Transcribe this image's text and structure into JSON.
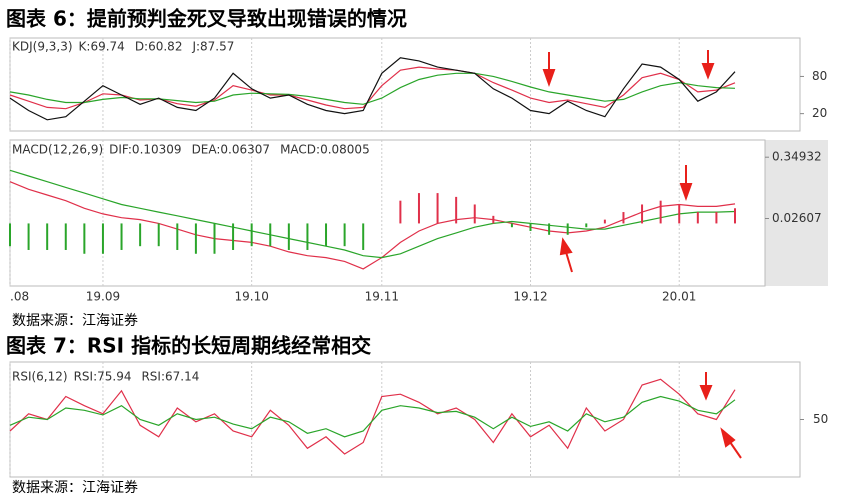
{
  "figure6_title": "图表 6：提前预判金死叉导致出现错误的情况",
  "figure6_source": "数据来源：江海证券",
  "figure7_title": "图表 7：RSI 指标的长短周期线经常相交",
  "figure7_source": "数据来源：江海证券",
  "chart_data": [
    {
      "type": "line",
      "indicator": "KDJ(9,3,3)",
      "ylim": [
        -8,
        142
      ],
      "yticks": [
        80,
        20
      ],
      "series": [
        {
          "name": "K:69.74",
          "color": "#e0304a",
          "values": [
            50,
            40,
            30,
            28,
            38,
            52,
            50,
            42,
            44,
            36,
            32,
            42,
            65,
            58,
            50,
            50,
            42,
            34,
            28,
            30,
            65,
            90,
            95,
            92,
            90,
            85,
            70,
            58,
            45,
            38,
            42,
            36,
            30,
            50,
            78,
            85,
            75,
            55,
            58,
            69.74
          ]
        },
        {
          "name": "D:60.82",
          "color": "#2aa52a",
          "values": [
            55,
            50,
            43,
            38,
            38,
            43,
            46,
            44,
            44,
            41,
            38,
            40,
            50,
            53,
            52,
            51,
            48,
            43,
            38,
            35,
            45,
            62,
            75,
            82,
            85,
            85,
            80,
            72,
            63,
            55,
            50,
            45,
            40,
            43,
            55,
            65,
            70,
            65,
            62,
            60.82
          ]
        },
        {
          "name": "J:87.57",
          "color": "#111111",
          "values": [
            45,
            25,
            10,
            15,
            40,
            65,
            50,
            35,
            45,
            30,
            25,
            45,
            85,
            60,
            45,
            50,
            35,
            25,
            20,
            25,
            85,
            110,
            105,
            95,
            90,
            85,
            60,
            45,
            25,
            20,
            40,
            25,
            15,
            60,
            100,
            95,
            75,
            40,
            55,
            87.57
          ]
        }
      ]
    },
    {
      "type": "macd",
      "indicator": "MACD(12,26,9)",
      "ylim": [
        -0.33,
        0.44
      ],
      "yticks": [
        0.34932,
        0.02607
      ],
      "categories": [
        ".08",
        null,
        null,
        null,
        null,
        "19.09",
        null,
        null,
        null,
        null,
        null,
        null,
        null,
        "19.10",
        null,
        null,
        null,
        null,
        null,
        null,
        "19.11",
        null,
        null,
        null,
        null,
        null,
        null,
        null,
        "19.12",
        null,
        null,
        null,
        null,
        null,
        null,
        null,
        "20.01",
        null,
        null,
        null
      ],
      "series": [
        {
          "name": "DIF:0.10309",
          "color": "#e0304a",
          "values": [
            0.22,
            0.18,
            0.15,
            0.12,
            0.08,
            0.05,
            0.03,
            0.02,
            0.0,
            -0.03,
            -0.06,
            -0.08,
            -0.09,
            -0.1,
            -0.12,
            -0.15,
            -0.17,
            -0.18,
            -0.2,
            -0.24,
            -0.18,
            -0.1,
            -0.04,
            0.0,
            0.02,
            0.03,
            0.02,
            0.0,
            -0.02,
            -0.04,
            -0.05,
            -0.04,
            -0.02,
            0.02,
            0.06,
            0.09,
            0.1,
            0.09,
            0.09,
            0.10309
          ]
        },
        {
          "name": "DEA:0.06307",
          "color": "#2aa52a",
          "values": [
            0.28,
            0.25,
            0.22,
            0.19,
            0.16,
            0.13,
            0.1,
            0.08,
            0.06,
            0.04,
            0.02,
            0.0,
            -0.02,
            -0.04,
            -0.06,
            -0.08,
            -0.1,
            -0.12,
            -0.14,
            -0.17,
            -0.18,
            -0.16,
            -0.12,
            -0.08,
            -0.05,
            -0.02,
            0.0,
            0.01,
            0.0,
            -0.01,
            -0.02,
            -0.03,
            -0.03,
            -0.01,
            0.01,
            0.03,
            0.05,
            0.06,
            0.06,
            0.06307
          ]
        },
        {
          "name": "MACD:0.08005",
          "color": "#111111",
          "kind": "bar",
          "up_color": "#e0304a",
          "down_color": "#2aa52a",
          "values": [
            -0.12,
            -0.14,
            -0.14,
            -0.14,
            -0.16,
            -0.16,
            -0.14,
            -0.12,
            -0.12,
            -0.14,
            -0.16,
            -0.16,
            -0.14,
            -0.12,
            -0.12,
            -0.14,
            -0.14,
            -0.12,
            -0.12,
            -0.14,
            0.0,
            0.12,
            0.16,
            0.16,
            0.14,
            0.1,
            0.04,
            -0.02,
            -0.04,
            -0.06,
            -0.06,
            -0.02,
            0.02,
            0.06,
            0.1,
            0.12,
            0.1,
            0.06,
            0.06,
            0.08005
          ]
        }
      ]
    },
    {
      "type": "line",
      "indicator": "RSI(6,12)",
      "ylim": [
        0,
        100
      ],
      "yticks": [
        50
      ],
      "series": [
        {
          "name": "RSI:75.94",
          "color": "#e0304a",
          "values": [
            40,
            55,
            50,
            70,
            62,
            55,
            75,
            45,
            35,
            60,
            48,
            55,
            40,
            35,
            58,
            45,
            25,
            35,
            20,
            30,
            70,
            72,
            65,
            55,
            60,
            50,
            30,
            55,
            35,
            45,
            25,
            60,
            40,
            50,
            80,
            85,
            72,
            55,
            50,
            75.94
          ]
        },
        {
          "name": "RSI:67.14",
          "color": "#2aa52a",
          "values": [
            45,
            52,
            50,
            60,
            58,
            54,
            62,
            50,
            45,
            55,
            50,
            52,
            46,
            42,
            52,
            48,
            38,
            42,
            35,
            40,
            58,
            62,
            60,
            56,
            57,
            52,
            42,
            52,
            44,
            48,
            40,
            55,
            48,
            52,
            65,
            70,
            66,
            58,
            55,
            67.14
          ]
        }
      ]
    }
  ]
}
